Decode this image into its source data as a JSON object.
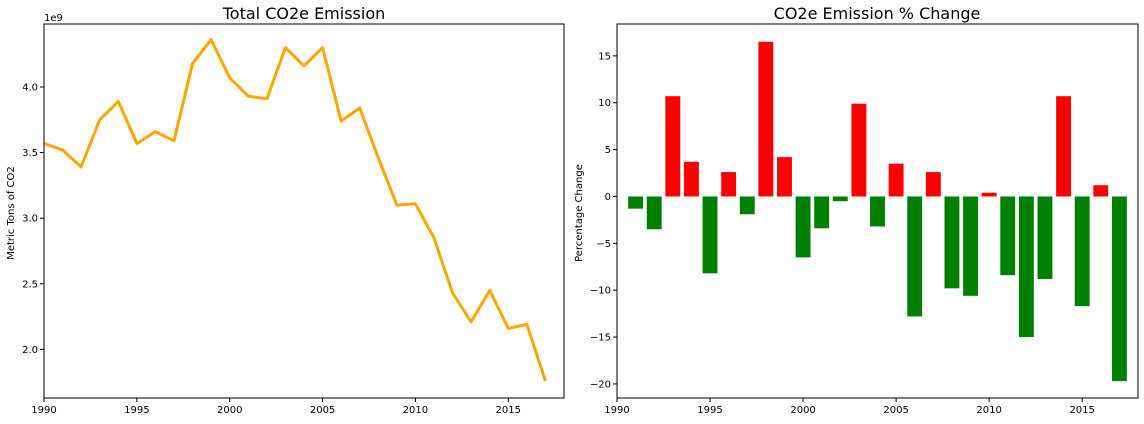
{
  "chart_data": [
    {
      "type": "line",
      "title": "Total CO2e Emission",
      "xlabel": "",
      "ylabel": "Metric Tons of CO2",
      "y_offset_label": "1e9",
      "xlim": [
        1990,
        2018
      ],
      "ylim": [
        1.63,
        4.48
      ],
      "xticks": [
        1990,
        1995,
        2000,
        2005,
        2010,
        2015
      ],
      "xtick_labels": [
        "1990",
        "1995",
        "2000",
        "2005",
        "2010",
        "2015"
      ],
      "yticks": [
        2.0,
        2.5,
        3.0,
        3.5,
        4.0
      ],
      "ytick_labels": [
        "2.0",
        "2.5",
        "3.0",
        "3.5",
        "4.0"
      ],
      "grid": false,
      "color": "#ffa500",
      "x": [
        1990,
        1991,
        1992,
        1993,
        1994,
        1995,
        1996,
        1997,
        1998,
        1999,
        2000,
        2001,
        2002,
        2003,
        2004,
        2005,
        2006,
        2007,
        2008,
        2009,
        2010,
        2011,
        2012,
        2013,
        2014,
        2015,
        2016,
        2017
      ],
      "values": [
        3.57,
        3.52,
        3.39,
        3.75,
        3.89,
        3.57,
        3.66,
        3.59,
        4.18,
        4.36,
        4.07,
        3.93,
        3.91,
        4.3,
        4.16,
        4.3,
        3.74,
        3.84,
        3.46,
        3.1,
        3.11,
        2.85,
        2.43,
        2.21,
        2.45,
        2.16,
        2.19,
        1.76
      ]
    },
    {
      "type": "bar",
      "title": "CO2e Emission % Change",
      "xlabel": "",
      "ylabel": "Percentage Change",
      "xlim": [
        1990,
        2018
      ],
      "ylim": [
        -21.5,
        18.4
      ],
      "xticks": [
        1990,
        1995,
        2000,
        2005,
        2010,
        2015
      ],
      "xtick_labels": [
        "1990",
        "1995",
        "2000",
        "2005",
        "2010",
        "2015"
      ],
      "yticks": [
        -20,
        -15,
        -10,
        -5,
        0,
        5,
        10,
        15
      ],
      "ytick_labels": [
        "−20",
        "−15",
        "−10",
        "−5",
        "0",
        "5",
        "10",
        "15"
      ],
      "grid": false,
      "positive_color": "#ff0000",
      "negative_color": "#008000",
      "x": [
        1991,
        1992,
        1993,
        1994,
        1995,
        1996,
        1997,
        1998,
        1999,
        2000,
        2001,
        2002,
        2003,
        2004,
        2005,
        2006,
        2007,
        2008,
        2009,
        2010,
        2011,
        2012,
        2013,
        2014,
        2015,
        2016,
        2017
      ],
      "values": [
        -1.3,
        -3.5,
        10.7,
        3.7,
        -8.2,
        2.6,
        -1.9,
        16.5,
        4.2,
        -6.5,
        -3.4,
        -0.5,
        9.9,
        -3.2,
        3.5,
        -12.8,
        2.6,
        -9.8,
        -10.6,
        0.4,
        -8.4,
        -15.0,
        -8.8,
        10.7,
        -11.7,
        1.2,
        -19.7
      ]
    }
  ]
}
